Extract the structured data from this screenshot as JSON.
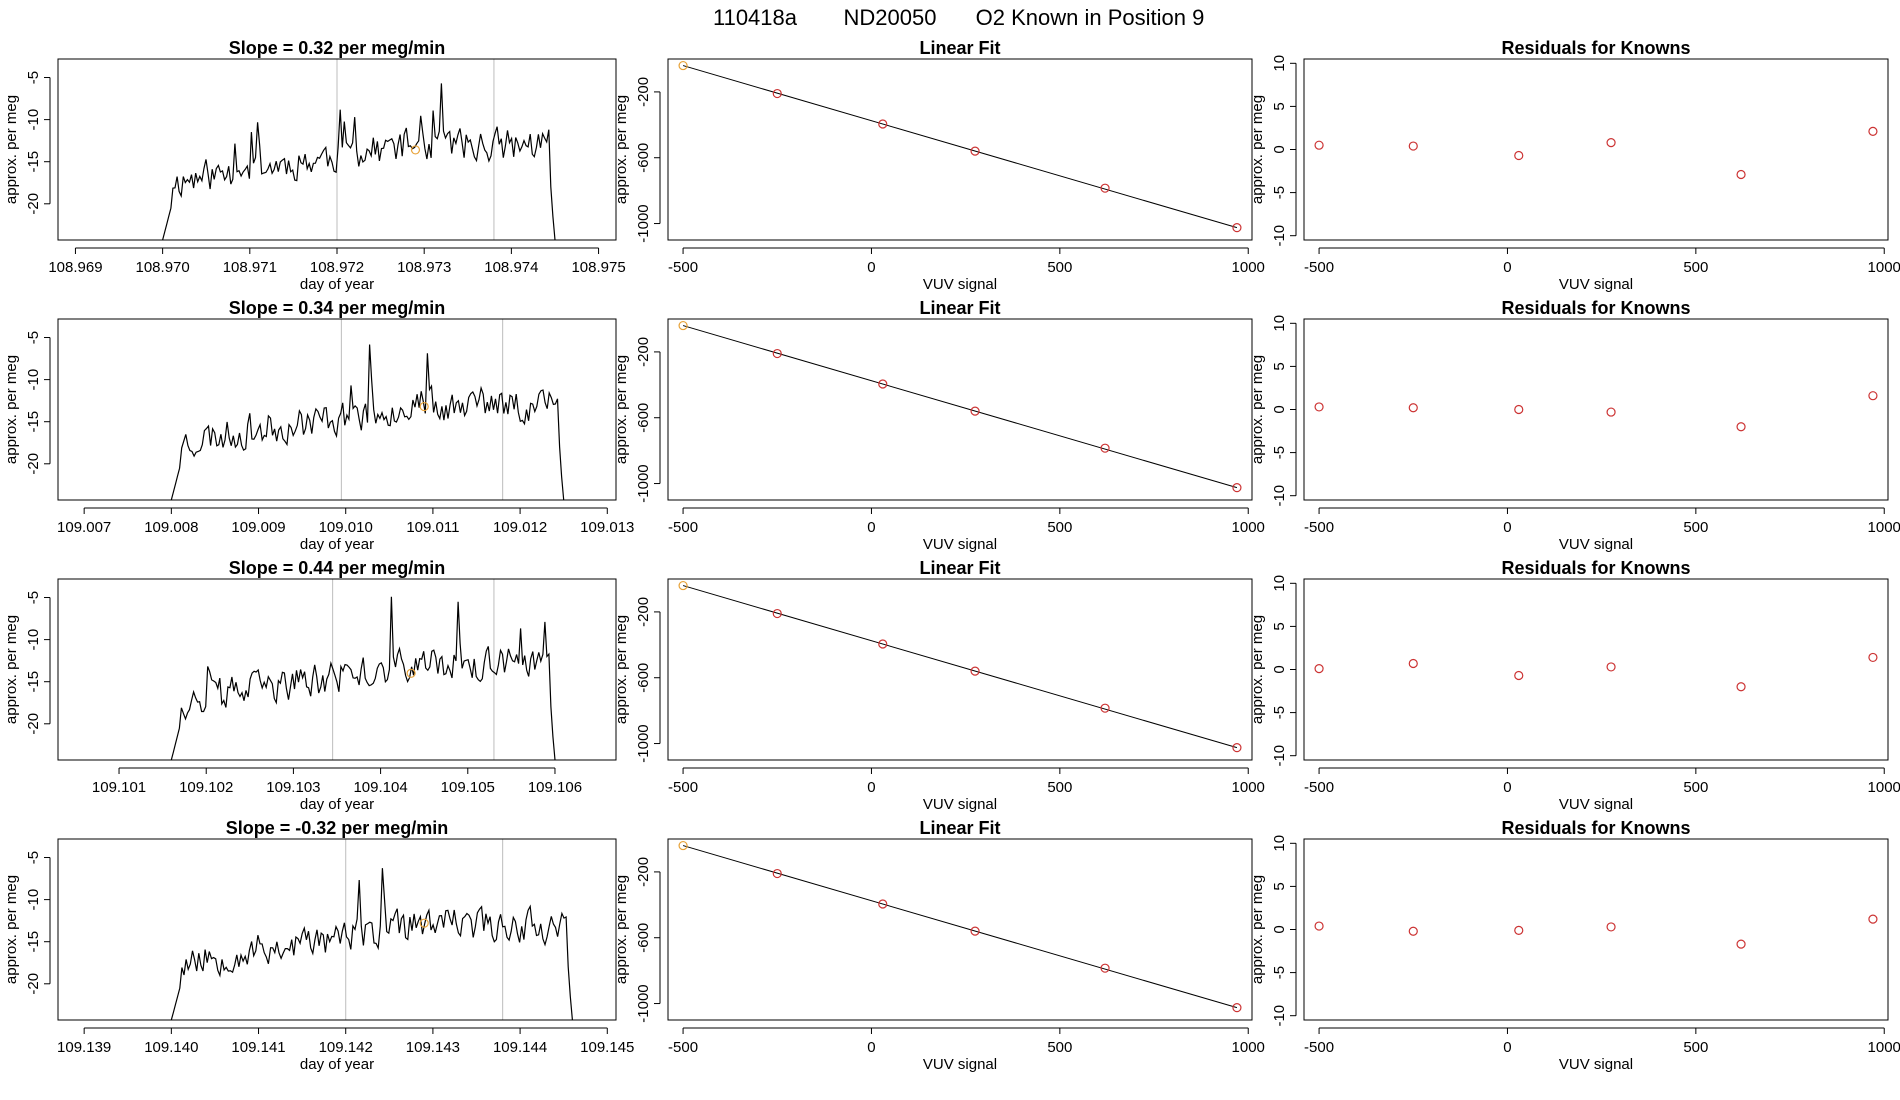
{
  "title": {
    "run_id": "110418a",
    "tank": "ND20050",
    "description": "O2 Known in Position  9"
  },
  "colors": {
    "ts_line": "#000000",
    "highlight": "#e8a33a",
    "residual": "#cc3333",
    "vline": "#bdbdbd"
  },
  "chart_data": [
    {
      "type": "line",
      "panel": "timeseries",
      "row": 1,
      "title": "Slope =  0.32  per meg/min",
      "xlabel": "day of year",
      "ylabel": "approx. per meg",
      "xlim": [
        108.9688,
        108.9752
      ],
      "ylim": [
        -24.3,
        -2.8
      ],
      "xticks": [
        "108.969",
        "108.970",
        "108.971",
        "108.972",
        "108.973",
        "108.974",
        "108.975"
      ],
      "yticks": [
        -5,
        -10,
        -15,
        -20
      ],
      "start": 108.97,
      "end": 108.9745,
      "seed": 11,
      "vlines": [
        108.972,
        108.9738
      ],
      "highlight_point": {
        "x": 108.9729,
        "y": -13.6
      }
    },
    {
      "type": "line",
      "panel": "fit",
      "row": 1,
      "title": "Linear Fit",
      "xlabel": "VUV signal",
      "ylabel": "approx. per meg",
      "xlim": [
        -540,
        1010
      ],
      "ylim": [
        -1100,
        0
      ],
      "xticks": [
        -500,
        0,
        500,
        1000
      ],
      "yticks": [
        -200,
        -600,
        -1000
      ],
      "points": [
        [
          -500,
          -40
        ],
        [
          -250,
          -210
        ],
        [
          30,
          -395
        ],
        [
          275,
          -560
        ],
        [
          620,
          -785
        ],
        [
          970,
          -1025
        ]
      ],
      "fit_line": [
        [
          -500,
          -40
        ],
        [
          970,
          -1025
        ]
      ]
    },
    {
      "type": "scatter",
      "panel": "residuals",
      "row": 1,
      "title": "Residuals for Knowns",
      "xlabel": "VUV signal",
      "ylabel": "approx. per meg",
      "xlim": [
        -540,
        1010
      ],
      "ylim": [
        -10.5,
        10.5
      ],
      "xticks": [
        -500,
        0,
        500,
        1000
      ],
      "yticks": [
        10,
        5,
        0,
        -5,
        -10
      ],
      "points": [
        [
          -500,
          0.5
        ],
        [
          -250,
          0.4
        ],
        [
          30,
          -0.7
        ],
        [
          275,
          0.8
        ],
        [
          620,
          -2.9
        ],
        [
          970,
          2.1
        ]
      ]
    },
    {
      "type": "line",
      "panel": "timeseries",
      "row": 2,
      "title": "Slope =  0.34  per meg/min",
      "xlabel": "day of year",
      "ylabel": "approx. per meg",
      "xlim": [
        109.0067,
        109.0131
      ],
      "ylim": [
        -24.3,
        -2.8
      ],
      "xticks": [
        "109.007",
        "109.008",
        "109.009",
        "109.010",
        "109.011",
        "109.012",
        "109.013"
      ],
      "yticks": [
        -5,
        -10,
        -15,
        -20
      ],
      "start": 109.008,
      "end": 109.0125,
      "seed": 23,
      "vlines": [
        109.00995,
        109.0118
      ],
      "highlight_point": {
        "x": 109.0109,
        "y": -13.2
      }
    },
    {
      "type": "line",
      "panel": "fit",
      "row": 2,
      "title": "Linear Fit",
      "xlabel": "VUV signal",
      "ylabel": "approx. per meg",
      "xlim": [
        -540,
        1010
      ],
      "ylim": [
        -1100,
        0
      ],
      "xticks": [
        -500,
        0,
        500,
        1000
      ],
      "yticks": [
        -200,
        -600,
        -1000
      ],
      "points": [
        [
          -500,
          -40
        ],
        [
          -250,
          -210
        ],
        [
          30,
          -395
        ],
        [
          275,
          -560
        ],
        [
          620,
          -785
        ],
        [
          970,
          -1025
        ]
      ],
      "fit_line": [
        [
          -500,
          -40
        ],
        [
          970,
          -1025
        ]
      ]
    },
    {
      "type": "scatter",
      "panel": "residuals",
      "row": 2,
      "title": "Residuals for Knowns",
      "xlabel": "VUV signal",
      "ylabel": "approx. per meg",
      "xlim": [
        -540,
        1010
      ],
      "ylim": [
        -10.5,
        10.5
      ],
      "xticks": [
        -500,
        0,
        500,
        1000
      ],
      "yticks": [
        10,
        5,
        0,
        -5,
        -10
      ],
      "points": [
        [
          -500,
          0.3
        ],
        [
          -250,
          0.2
        ],
        [
          30,
          0.0
        ],
        [
          275,
          -0.3
        ],
        [
          620,
          -2.0
        ],
        [
          970,
          1.6
        ]
      ]
    },
    {
      "type": "line",
      "panel": "timeseries",
      "row": 3,
      "title": "Slope =  0.44  per meg/min",
      "xlabel": "day of year",
      "ylabel": "approx. per meg",
      "xlim": [
        109.1003,
        109.1067
      ],
      "ylim": [
        -24.3,
        -2.8
      ],
      "xticks": [
        "109.101",
        "109.102",
        "109.103",
        "109.104",
        "109.105",
        "109.106"
      ],
      "yticks": [
        -5,
        -10,
        -15,
        -20
      ],
      "start": 109.1016,
      "end": 109.106,
      "seed": 37,
      "vlines": [
        109.10345,
        109.1053
      ],
      "highlight_point": {
        "x": 109.10435,
        "y": -14.0
      }
    },
    {
      "type": "line",
      "panel": "fit",
      "row": 3,
      "title": "Linear Fit",
      "xlabel": "VUV signal",
      "ylabel": "approx. per meg",
      "xlim": [
        -540,
        1010
      ],
      "ylim": [
        -1100,
        0
      ],
      "xticks": [
        -500,
        0,
        500,
        1000
      ],
      "yticks": [
        -200,
        -600,
        -1000
      ],
      "points": [
        [
          -500,
          -40
        ],
        [
          -250,
          -210
        ],
        [
          30,
          -395
        ],
        [
          275,
          -560
        ],
        [
          620,
          -785
        ],
        [
          970,
          -1025
        ]
      ],
      "fit_line": [
        [
          -500,
          -40
        ],
        [
          970,
          -1025
        ]
      ]
    },
    {
      "type": "scatter",
      "panel": "residuals",
      "row": 3,
      "title": "Residuals for Knowns",
      "xlabel": "VUV signal",
      "ylabel": "approx. per meg",
      "xlim": [
        -540,
        1010
      ],
      "ylim": [
        -10.5,
        10.5
      ],
      "xticks": [
        -500,
        0,
        500,
        1000
      ],
      "yticks": [
        10,
        5,
        0,
        -5,
        -10
      ],
      "points": [
        [
          -500,
          0.1
        ],
        [
          -250,
          0.7
        ],
        [
          30,
          -0.7
        ],
        [
          275,
          0.3
        ],
        [
          620,
          -2.0
        ],
        [
          970,
          1.4
        ]
      ]
    },
    {
      "type": "line",
      "panel": "timeseries",
      "row": 4,
      "title": "Slope =  -0.32  per meg/min",
      "xlabel": "day of year",
      "ylabel": "approx. per meg",
      "xlim": [
        109.1387,
        109.1451
      ],
      "ylim": [
        -24.3,
        -2.8
      ],
      "xticks": [
        "109.139",
        "109.140",
        "109.141",
        "109.142",
        "109.143",
        "109.144",
        "109.145"
      ],
      "yticks": [
        -5,
        -10,
        -15,
        -20
      ],
      "start": 109.14,
      "end": 109.1446,
      "seed": 53,
      "vlines": [
        109.142,
        109.1438
      ],
      "highlight_point": {
        "x": 109.1429,
        "y": -12.8
      }
    },
    {
      "type": "line",
      "panel": "fit",
      "row": 4,
      "title": "Linear Fit",
      "xlabel": "VUV signal",
      "ylabel": "approx. per meg",
      "xlim": [
        -540,
        1010
      ],
      "ylim": [
        -1100,
        0
      ],
      "xticks": [
        -500,
        0,
        500,
        1000
      ],
      "yticks": [
        -200,
        -600,
        -1000
      ],
      "points": [
        [
          -500,
          -40
        ],
        [
          -250,
          -210
        ],
        [
          30,
          -395
        ],
        [
          275,
          -560
        ],
        [
          620,
          -785
        ],
        [
          970,
          -1025
        ]
      ],
      "fit_line": [
        [
          -500,
          -40
        ],
        [
          970,
          -1025
        ]
      ]
    },
    {
      "type": "scatter",
      "panel": "residuals",
      "row": 4,
      "title": "Residuals for Knowns",
      "xlabel": "VUV signal",
      "ylabel": "approx. per meg",
      "xlim": [
        -540,
        1010
      ],
      "ylim": [
        -10.5,
        10.5
      ],
      "xticks": [
        -500,
        0,
        500,
        1000
      ],
      "yticks": [
        10,
        5,
        0,
        -5,
        -10
      ],
      "points": [
        [
          -500,
          0.4
        ],
        [
          -250,
          -0.2
        ],
        [
          30,
          -0.1
        ],
        [
          275,
          0.3
        ],
        [
          620,
          -1.7
        ],
        [
          970,
          1.2
        ]
      ]
    }
  ]
}
